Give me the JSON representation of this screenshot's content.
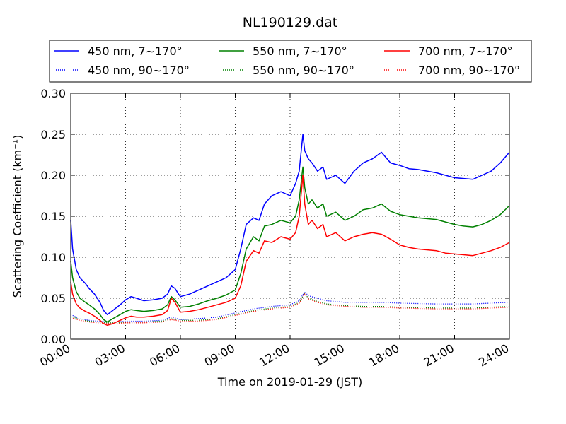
{
  "chart_data": {
    "type": "line",
    "title": "NL190129.dat",
    "xlabel": "Time on 2019-01-29 (JST)",
    "ylabel": "Scattering Coefficient (km⁻¹)",
    "x_unit": "hours",
    "xlim": [
      0,
      24
    ],
    "ylim": [
      0,
      0.3
    ],
    "x_ticks": [
      "00:00",
      "03:00",
      "06:00",
      "09:00",
      "12:00",
      "15:00",
      "18:00",
      "21:00",
      "24:00"
    ],
    "y_ticks": [
      "0.00",
      "0.05",
      "0.10",
      "0.15",
      "0.20",
      "0.25",
      "0.30"
    ],
    "grid": true,
    "legend_position": "top",
    "series": [
      {
        "name": "450 nm, 7∼170°",
        "color": "#0000ff",
        "style": "solid",
        "x": [
          0,
          0.1,
          0.3,
          0.5,
          0.8,
          1.0,
          1.3,
          1.6,
          1.8,
          2.0,
          2.3,
          2.7,
          3.0,
          3.3,
          3.6,
          4.0,
          4.5,
          5.0,
          5.3,
          5.5,
          5.7,
          5.9,
          6.0,
          6.5,
          7.0,
          7.5,
          8.0,
          8.5,
          9.0,
          9.3,
          9.6,
          10.0,
          10.3,
          10.6,
          11.0,
          11.5,
          12.0,
          12.3,
          12.5,
          12.7,
          12.8,
          13.0,
          13.2,
          13.5,
          13.8,
          14.0,
          14.5,
          15.0,
          15.5,
          16.0,
          16.5,
          17.0,
          17.5,
          18.0,
          18.5,
          19.0,
          20.0,
          20.5,
          21.0,
          21.5,
          22.0,
          22.5,
          23.0,
          23.5,
          24.0
        ],
        "y": [
          0.145,
          0.11,
          0.085,
          0.075,
          0.068,
          0.062,
          0.055,
          0.045,
          0.035,
          0.03,
          0.035,
          0.042,
          0.048,
          0.052,
          0.05,
          0.047,
          0.048,
          0.05,
          0.055,
          0.065,
          0.062,
          0.055,
          0.052,
          0.055,
          0.06,
          0.065,
          0.07,
          0.075,
          0.085,
          0.11,
          0.14,
          0.148,
          0.145,
          0.165,
          0.175,
          0.18,
          0.175,
          0.19,
          0.205,
          0.25,
          0.23,
          0.22,
          0.215,
          0.205,
          0.21,
          0.195,
          0.2,
          0.19,
          0.205,
          0.215,
          0.22,
          0.228,
          0.215,
          0.212,
          0.208,
          0.207,
          0.203,
          0.2,
          0.197,
          0.196,
          0.195,
          0.2,
          0.205,
          0.215,
          0.228
        ]
      },
      {
        "name": "450 nm, 90∼170°",
        "color": "#0000ff",
        "style": "dotted",
        "x": [
          0,
          0.5,
          1.0,
          1.5,
          2.0,
          2.5,
          3.0,
          4.0,
          5.0,
          5.5,
          6.0,
          7.0,
          8.0,
          9.0,
          10.0,
          11.0,
          12.0,
          12.5,
          12.8,
          13.0,
          13.5,
          14.0,
          15.0,
          16.0,
          17.0,
          18.0,
          20.0,
          22.0,
          24.0
        ],
        "y": [
          0.03,
          0.025,
          0.023,
          0.022,
          0.021,
          0.021,
          0.022,
          0.022,
          0.023,
          0.027,
          0.024,
          0.025,
          0.027,
          0.032,
          0.037,
          0.04,
          0.042,
          0.047,
          0.058,
          0.053,
          0.05,
          0.047,
          0.045,
          0.045,
          0.045,
          0.044,
          0.043,
          0.043,
          0.045
        ]
      },
      {
        "name": "550 nm, 7∼170°",
        "color": "#008000",
        "style": "solid",
        "x": [
          0,
          0.1,
          0.3,
          0.5,
          0.8,
          1.0,
          1.3,
          1.6,
          1.8,
          2.0,
          2.3,
          2.7,
          3.0,
          3.3,
          3.6,
          4.0,
          4.5,
          5.0,
          5.3,
          5.5,
          5.7,
          5.9,
          6.0,
          6.5,
          7.0,
          7.5,
          8.0,
          8.5,
          9.0,
          9.3,
          9.6,
          10.0,
          10.3,
          10.6,
          11.0,
          11.5,
          12.0,
          12.3,
          12.5,
          12.7,
          12.8,
          13.0,
          13.2,
          13.5,
          13.8,
          14.0,
          14.5,
          15.0,
          15.5,
          16.0,
          16.5,
          17.0,
          17.5,
          18.0,
          18.5,
          19.0,
          20.0,
          20.5,
          21.0,
          21.5,
          22.0,
          22.5,
          23.0,
          23.5,
          24.0
        ],
        "y": [
          0.095,
          0.075,
          0.058,
          0.05,
          0.045,
          0.042,
          0.037,
          0.03,
          0.024,
          0.021,
          0.025,
          0.03,
          0.034,
          0.036,
          0.035,
          0.034,
          0.035,
          0.037,
          0.042,
          0.052,
          0.048,
          0.042,
          0.039,
          0.04,
          0.043,
          0.047,
          0.05,
          0.054,
          0.06,
          0.08,
          0.11,
          0.125,
          0.12,
          0.138,
          0.14,
          0.145,
          0.142,
          0.15,
          0.17,
          0.21,
          0.185,
          0.165,
          0.17,
          0.16,
          0.165,
          0.15,
          0.155,
          0.145,
          0.15,
          0.158,
          0.16,
          0.165,
          0.156,
          0.152,
          0.15,
          0.148,
          0.146,
          0.143,
          0.14,
          0.138,
          0.137,
          0.14,
          0.145,
          0.152,
          0.163
        ]
      },
      {
        "name": "550 nm, 90∼170°",
        "color": "#008000",
        "style": "dotted",
        "x": [
          0,
          0.5,
          1.0,
          1.5,
          2.0,
          2.5,
          3.0,
          4.0,
          5.0,
          5.5,
          6.0,
          7.0,
          8.0,
          9.0,
          10.0,
          11.0,
          12.0,
          12.5,
          12.8,
          13.0,
          13.5,
          14.0,
          15.0,
          16.0,
          17.0,
          18.0,
          20.0,
          22.0,
          24.0
        ],
        "y": [
          0.028,
          0.024,
          0.022,
          0.021,
          0.02,
          0.02,
          0.021,
          0.021,
          0.022,
          0.025,
          0.023,
          0.023,
          0.025,
          0.03,
          0.035,
          0.038,
          0.04,
          0.045,
          0.056,
          0.05,
          0.046,
          0.043,
          0.041,
          0.04,
          0.04,
          0.039,
          0.038,
          0.038,
          0.04
        ]
      },
      {
        "name": "700 nm, 7∼170°",
        "color": "#ff0000",
        "style": "solid",
        "x": [
          0,
          0.1,
          0.3,
          0.5,
          0.8,
          1.0,
          1.3,
          1.6,
          1.8,
          2.0,
          2.3,
          2.7,
          3.0,
          3.3,
          3.6,
          4.0,
          4.5,
          5.0,
          5.3,
          5.5,
          5.7,
          5.9,
          6.0,
          6.5,
          7.0,
          7.5,
          8.0,
          8.5,
          9.0,
          9.3,
          9.6,
          10.0,
          10.3,
          10.6,
          11.0,
          11.5,
          12.0,
          12.3,
          12.5,
          12.7,
          12.8,
          13.0,
          13.2,
          13.5,
          13.8,
          14.0,
          14.5,
          15.0,
          15.5,
          16.0,
          16.5,
          17.0,
          17.5,
          18.0,
          18.5,
          19.0,
          20.0,
          20.5,
          21.0,
          21.5,
          22.0,
          22.5,
          23.0,
          23.5,
          24.0
        ],
        "y": [
          0.07,
          0.055,
          0.043,
          0.038,
          0.034,
          0.032,
          0.028,
          0.023,
          0.019,
          0.017,
          0.019,
          0.023,
          0.026,
          0.028,
          0.027,
          0.027,
          0.028,
          0.03,
          0.035,
          0.05,
          0.045,
          0.037,
          0.033,
          0.034,
          0.036,
          0.039,
          0.042,
          0.045,
          0.05,
          0.065,
          0.095,
          0.108,
          0.105,
          0.12,
          0.118,
          0.125,
          0.122,
          0.13,
          0.15,
          0.2,
          0.165,
          0.14,
          0.145,
          0.135,
          0.14,
          0.125,
          0.13,
          0.12,
          0.125,
          0.128,
          0.13,
          0.128,
          0.122,
          0.115,
          0.112,
          0.11,
          0.108,
          0.105,
          0.104,
          0.103,
          0.102,
          0.105,
          0.108,
          0.112,
          0.118
        ]
      },
      {
        "name": "700 nm, 90∼170°",
        "color": "#ff0000",
        "style": "dotted",
        "x": [
          0,
          0.5,
          1.0,
          1.5,
          2.0,
          2.5,
          3.0,
          4.0,
          5.0,
          5.5,
          6.0,
          7.0,
          8.0,
          9.0,
          10.0,
          11.0,
          12.0,
          12.5,
          12.8,
          13.0,
          13.5,
          14.0,
          15.0,
          16.0,
          17.0,
          18.0,
          20.0,
          22.0,
          24.0
        ],
        "y": [
          0.026,
          0.023,
          0.021,
          0.02,
          0.019,
          0.019,
          0.02,
          0.02,
          0.021,
          0.024,
          0.022,
          0.022,
          0.024,
          0.029,
          0.034,
          0.037,
          0.039,
          0.044,
          0.055,
          0.049,
          0.045,
          0.042,
          0.04,
          0.039,
          0.039,
          0.038,
          0.037,
          0.037,
          0.039
        ]
      }
    ]
  }
}
